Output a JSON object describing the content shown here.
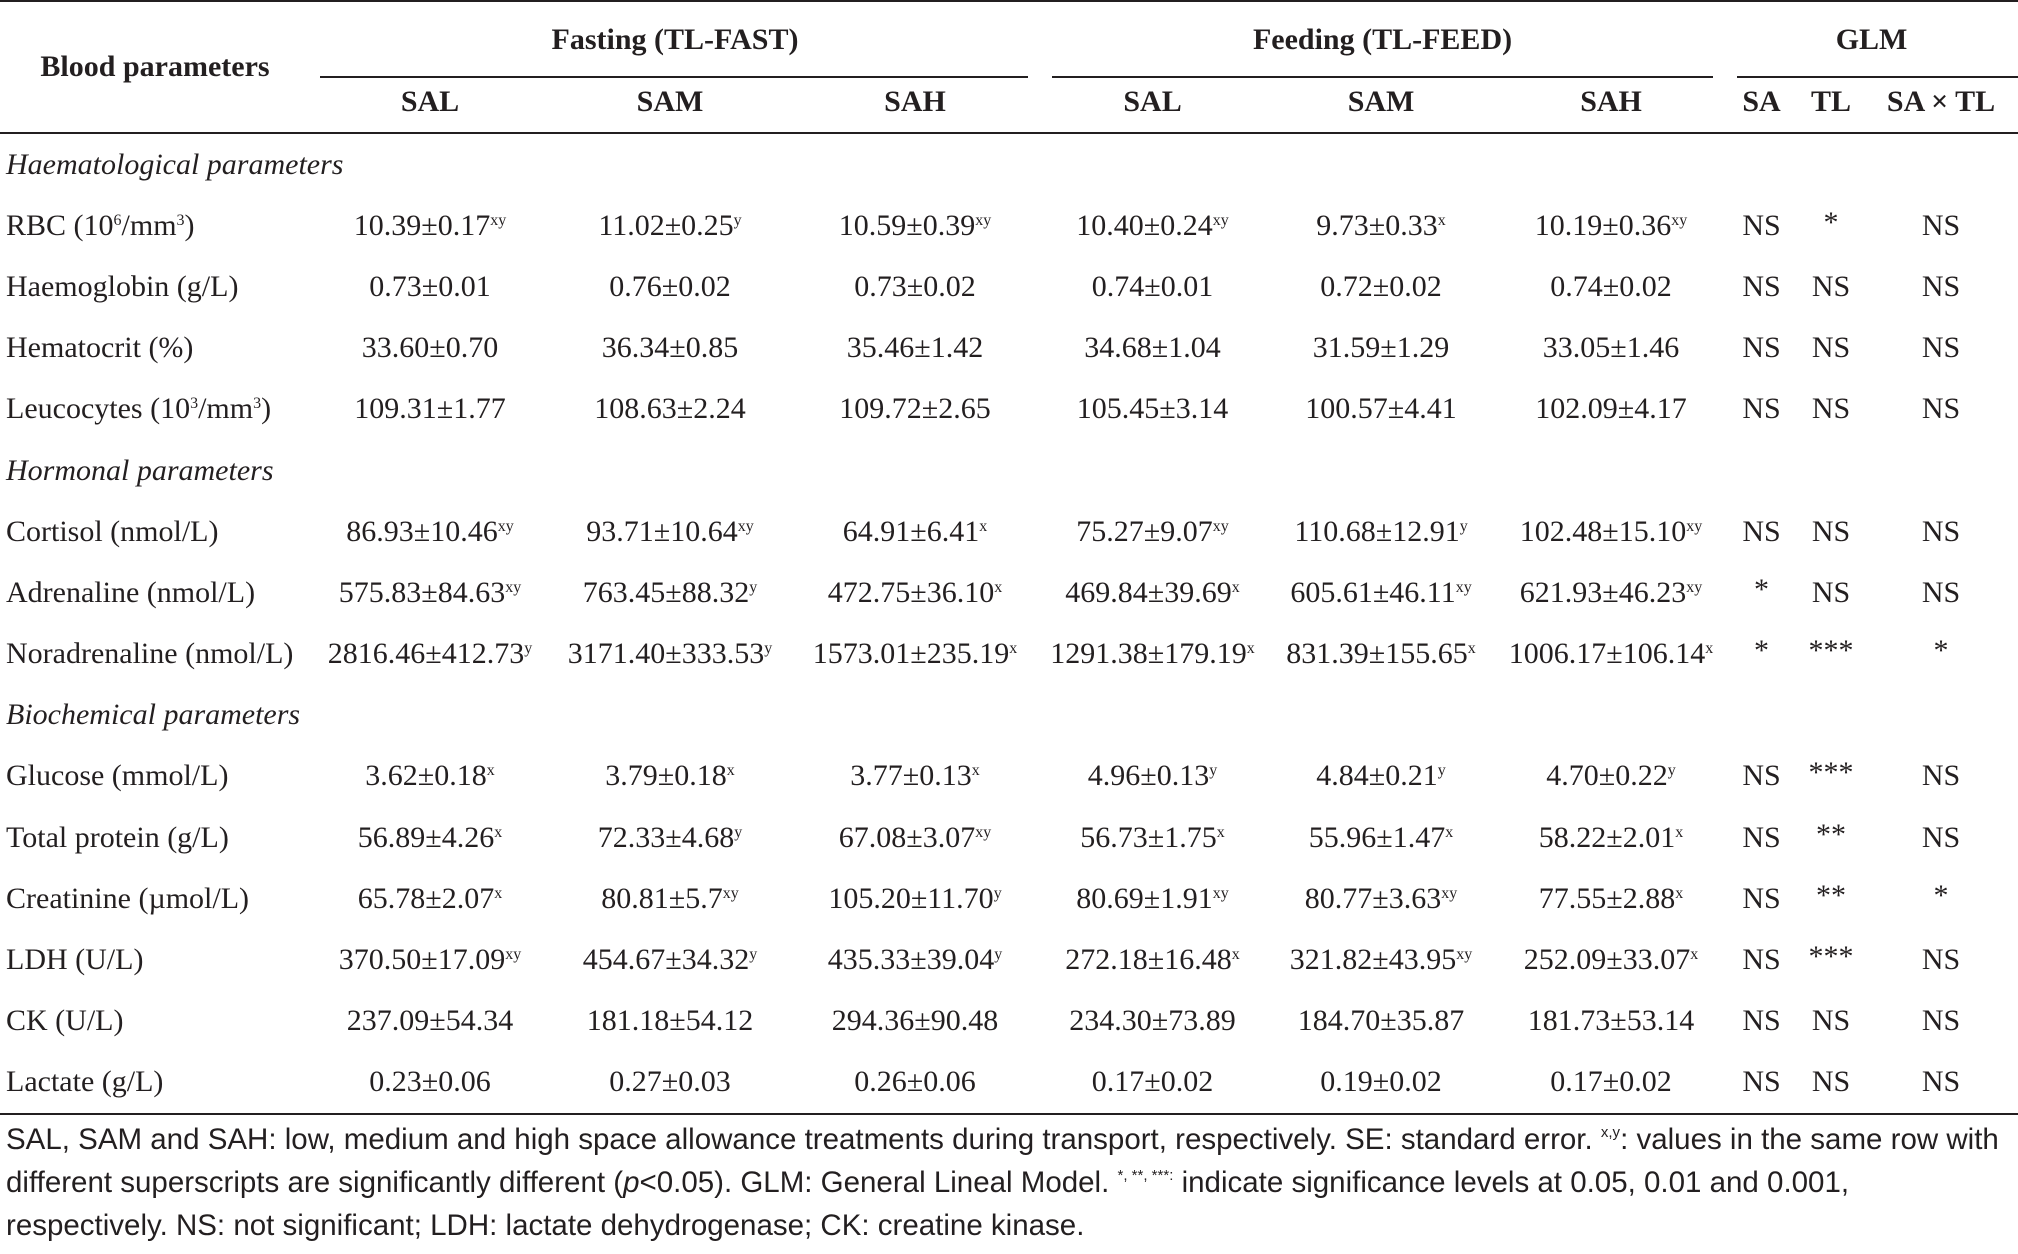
{
  "header": {
    "blood_parameters": "Blood parameters",
    "group_fasting": "Fasting (TL-FAST)",
    "group_feeding": "Feeding (TL-FEED)",
    "group_glm": "GLM",
    "sub": [
      "SAL",
      "SAM",
      "SAH",
      "SAL",
      "SAM",
      "SAH",
      "SA",
      "TL",
      "SA × TL"
    ]
  },
  "sections": {
    "haematological": "Haematological parameters",
    "hormonal": "Hormonal parameters",
    "biochemical": "Biochemical parameters"
  },
  "rows": {
    "rbc": {
      "label": "RBC (10",
      "label_sup": "6",
      "label_tail": "/mm",
      "label_sup2": "3",
      "label_end": ")",
      "cells": [
        {
          "v": "10.39±0.17",
          "s": "xy"
        },
        {
          "v": "11.02±0.25",
          "s": "y"
        },
        {
          "v": "10.59±0.39",
          "s": "xy"
        },
        {
          "v": "10.40±0.24",
          "s": "xy"
        },
        {
          "v": "9.73±0.33",
          "s": "x"
        },
        {
          "v": "10.19±0.36",
          "s": "xy"
        }
      ],
      "glm": [
        "NS",
        "*",
        "NS"
      ]
    },
    "haemoglobin": {
      "label": "Haemoglobin (g/L)",
      "cells": [
        {
          "v": "0.73±0.01",
          "s": ""
        },
        {
          "v": "0.76±0.02",
          "s": ""
        },
        {
          "v": "0.73±0.02",
          "s": ""
        },
        {
          "v": "0.74±0.01",
          "s": ""
        },
        {
          "v": "0.72±0.02",
          "s": ""
        },
        {
          "v": "0.74±0.02",
          "s": ""
        }
      ],
      "glm": [
        "NS",
        "NS",
        "NS"
      ]
    },
    "hematocrit": {
      "label": "Hematocrit (%)",
      "cells": [
        {
          "v": "33.60±0.70",
          "s": ""
        },
        {
          "v": "36.34±0.85",
          "s": ""
        },
        {
          "v": "35.46±1.42",
          "s": ""
        },
        {
          "v": "34.68±1.04",
          "s": ""
        },
        {
          "v": "31.59±1.29",
          "s": ""
        },
        {
          "v": "33.05±1.46",
          "s": ""
        }
      ],
      "glm": [
        "NS",
        "NS",
        "NS"
      ]
    },
    "leucocytes": {
      "label": "Leucocytes (10",
      "label_sup": "3",
      "label_tail": "/mm",
      "label_sup2": "3",
      "label_end": ")",
      "cells": [
        {
          "v": "109.31±1.77",
          "s": ""
        },
        {
          "v": "108.63±2.24",
          "s": ""
        },
        {
          "v": "109.72±2.65",
          "s": ""
        },
        {
          "v": "105.45±3.14",
          "s": ""
        },
        {
          "v": "100.57±4.41",
          "s": ""
        },
        {
          "v": "102.09±4.17",
          "s": ""
        }
      ],
      "glm": [
        "NS",
        "NS",
        "NS"
      ]
    },
    "cortisol": {
      "label": "Cortisol (nmol/L)",
      "cells": [
        {
          "v": "86.93±10.46",
          "s": "xy"
        },
        {
          "v": "93.71±10.64",
          "s": "xy"
        },
        {
          "v": "64.91±6.41",
          "s": "x"
        },
        {
          "v": "75.27±9.07",
          "s": "xy"
        },
        {
          "v": "110.68±12.91",
          "s": "y"
        },
        {
          "v": "102.48±15.10",
          "s": "xy"
        }
      ],
      "glm": [
        "NS",
        "NS",
        "NS"
      ]
    },
    "adrenaline": {
      "label": "Adrenaline (nmol/L)",
      "cells": [
        {
          "v": "575.83±84.63",
          "s": "xy"
        },
        {
          "v": "763.45±88.32",
          "s": "y"
        },
        {
          "v": "472.75±36.10",
          "s": "x"
        },
        {
          "v": "469.84±39.69",
          "s": "x"
        },
        {
          "v": "605.61±46.11",
          "s": "xy"
        },
        {
          "v": "621.93±46.23",
          "s": "xy"
        }
      ],
      "glm": [
        "*",
        "NS",
        "NS"
      ]
    },
    "noradrenaline": {
      "label": "Noradrenaline (nmol/L)",
      "cells": [
        {
          "v": "2816.46±412.73",
          "s": "y"
        },
        {
          "v": "3171.40±333.53",
          "s": "y"
        },
        {
          "v": "1573.01±235.19",
          "s": "x"
        },
        {
          "v": "1291.38±179.19",
          "s": "x"
        },
        {
          "v": "831.39±155.65",
          "s": "x"
        },
        {
          "v": "1006.17±106.14",
          "s": "x"
        }
      ],
      "glm": [
        "*",
        "***",
        "*"
      ]
    },
    "glucose": {
      "label": "Glucose (mmol/L)",
      "cells": [
        {
          "v": "3.62±0.18",
          "s": "x"
        },
        {
          "v": "3.79±0.18",
          "s": "x"
        },
        {
          "v": "3.77±0.13",
          "s": "x"
        },
        {
          "v": "4.96±0.13",
          "s": "y"
        },
        {
          "v": "4.84±0.21",
          "s": "y"
        },
        {
          "v": "4.70±0.22",
          "s": "y"
        }
      ],
      "glm": [
        "NS",
        "***",
        "NS"
      ]
    },
    "total_protein": {
      "label": "Total protein (g/L)",
      "cells": [
        {
          "v": "56.89±4.26",
          "s": "x"
        },
        {
          "v": "72.33±4.68",
          "s": "y"
        },
        {
          "v": "67.08±3.07",
          "s": "xy"
        },
        {
          "v": "56.73±1.75",
          "s": "x"
        },
        {
          "v": "55.96±1.47",
          "s": "x"
        },
        {
          "v": "58.22±2.01",
          "s": "x"
        }
      ],
      "glm": [
        "NS",
        "**",
        "NS"
      ]
    },
    "creatinine": {
      "label": "Creatinine (µmol/L)",
      "cells": [
        {
          "v": "65.78±2.07",
          "s": "x"
        },
        {
          "v": "80.81±5.7",
          "s": "xy"
        },
        {
          "v": "105.20±11.70",
          "s": "y"
        },
        {
          "v": "80.69±1.91",
          "s": "xy"
        },
        {
          "v": "80.77±3.63",
          "s": "xy"
        },
        {
          "v": "77.55±2.88",
          "s": "x"
        }
      ],
      "glm": [
        "NS",
        "**",
        "*"
      ]
    },
    "ldh": {
      "label": "LDH (U/L)",
      "cells": [
        {
          "v": "370.50±17.09",
          "s": "xy"
        },
        {
          "v": "454.67±34.32",
          "s": "y"
        },
        {
          "v": "435.33±39.04",
          "s": "y"
        },
        {
          "v": "272.18±16.48",
          "s": "x"
        },
        {
          "v": "321.82±43.95",
          "s": "xy"
        },
        {
          "v": "252.09±33.07",
          "s": "x"
        }
      ],
      "glm": [
        "NS",
        "***",
        "NS"
      ]
    },
    "ck": {
      "label": "CK (U/L)",
      "cells": [
        {
          "v": "237.09±54.34",
          "s": ""
        },
        {
          "v": "181.18±54.12",
          "s": ""
        },
        {
          "v": "294.36±90.48",
          "s": ""
        },
        {
          "v": "234.30±73.89",
          "s": ""
        },
        {
          "v": "184.70±35.87",
          "s": ""
        },
        {
          "v": "181.73±53.14",
          "s": ""
        }
      ],
      "glm": [
        "NS",
        "NS",
        "NS"
      ]
    },
    "lactate": {
      "label": "Lactate (g/L)",
      "cells": [
        {
          "v": "0.23±0.06",
          "s": ""
        },
        {
          "v": "0.27±0.03",
          "s": ""
        },
        {
          "v": "0.26±0.06",
          "s": ""
        },
        {
          "v": "0.17±0.02",
          "s": ""
        },
        {
          "v": "0.19±0.02",
          "s": ""
        },
        {
          "v": "0.17±0.02",
          "s": ""
        }
      ],
      "glm": [
        "NS",
        "NS",
        "NS"
      ]
    }
  },
  "footnote": {
    "p1": "SAL, SAM and SAH: low, medium and high space allowance treatments during transport, respectively.  SE: standard error. ",
    "sup_xy": "x,y",
    "p2": ": values in the same row with different superscripts are significantly different (",
    "p_italic": "p",
    "p3": "<0.05).  GLM: General Lineal Model. ",
    "sup_stars": "*, **, ***:",
    "p4": " indicate significance levels at 0.05, 0.01 and 0.001, respectively.  NS: not significant; LDH: lactate dehydrogenase; CK: creatine kinase."
  }
}
